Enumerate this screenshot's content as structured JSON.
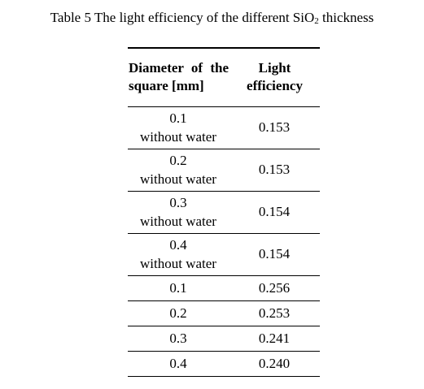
{
  "caption": {
    "prefix": "Table 5 The light efficiency of the different SiO",
    "subscript": "2",
    "suffix": " thickness"
  },
  "table": {
    "headers": {
      "diameter": "Diameter of the square [mm]",
      "light_efficiency": "Light efficiency"
    },
    "rows": [
      {
        "diameter": "0.1",
        "note": "without water",
        "light_efficiency": "0.153"
      },
      {
        "diameter": "0.2",
        "note": "without water",
        "light_efficiency": "0.153"
      },
      {
        "diameter": "0.3",
        "note": "without water",
        "light_efficiency": "0.154"
      },
      {
        "diameter": "0.4",
        "note": "without water",
        "light_efficiency": "0.154"
      },
      {
        "diameter": "0.1",
        "note": "",
        "light_efficiency": "0.256"
      },
      {
        "diameter": "0.2",
        "note": "",
        "light_efficiency": "0.253"
      },
      {
        "diameter": "0.3",
        "note": "",
        "light_efficiency": "0.241"
      },
      {
        "diameter": "0.4",
        "note": "",
        "light_efficiency": "0.240"
      }
    ]
  }
}
